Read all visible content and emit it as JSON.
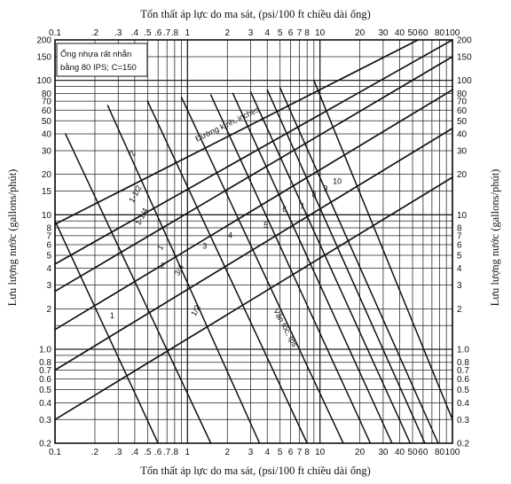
{
  "chart_data": {
    "type": "line",
    "x_scale": "log",
    "y_scale": "log",
    "xlim": [
      0.1,
      100
    ],
    "ylim": [
      0.2,
      200
    ],
    "grid": true,
    "title_top": "Tổn thất áp lực do ma sát, (psi/100 ft chiều dài ống)",
    "xlabel": "Tổn thất áp lực do ma sát, (psi/100 ft chiều dài ống)",
    "ylabel": "Lưu lượng nước (gallons/phút)",
    "ylabel_right": "Lưu lượng nước (gallons/phút)",
    "x_tick_labels": [
      {
        "v": 0.1,
        "t": "0.1"
      },
      {
        "v": 0.2,
        "t": ".2"
      },
      {
        "v": 0.3,
        "t": ".3"
      },
      {
        "v": 0.4,
        "t": ".4"
      },
      {
        "v": 0.5,
        "t": ".5"
      },
      {
        "v": 0.6,
        "t": ".6"
      },
      {
        "v": 0.7,
        "t": ".7"
      },
      {
        "v": 0.8,
        "t": ".8"
      },
      {
        "v": 1,
        "t": "1"
      },
      {
        "v": 2,
        "t": "2"
      },
      {
        "v": 3,
        "t": "3"
      },
      {
        "v": 4,
        "t": "4"
      },
      {
        "v": 5,
        "t": "5"
      },
      {
        "v": 6,
        "t": "6"
      },
      {
        "v": 7,
        "t": "7"
      },
      {
        "v": 8,
        "t": "8"
      },
      {
        "v": 10,
        "t": "10"
      },
      {
        "v": 20,
        "t": "20"
      },
      {
        "v": 30,
        "t": "30"
      },
      {
        "v": 40,
        "t": "40"
      },
      {
        "v": 50,
        "t": "50"
      },
      {
        "v": 60,
        "t": "60"
      },
      {
        "v": 80,
        "t": "80"
      },
      {
        "v": 100,
        "t": "100"
      }
    ],
    "y_tick_labels": [
      {
        "v": 200,
        "t": "200"
      },
      {
        "v": 150,
        "t": "150"
      },
      {
        "v": 100,
        "t": "100"
      },
      {
        "v": 80,
        "t": "80"
      },
      {
        "v": 70,
        "t": "70"
      },
      {
        "v": 60,
        "t": "60"
      },
      {
        "v": 50,
        "t": "50"
      },
      {
        "v": 40,
        "t": "40"
      },
      {
        "v": 30,
        "t": "30"
      },
      {
        "v": 20,
        "t": "20"
      },
      {
        "v": 15,
        "t": "15"
      },
      {
        "v": 10,
        "t": "10"
      },
      {
        "v": 8,
        "t": "8"
      },
      {
        "v": 7,
        "t": "7"
      },
      {
        "v": 6,
        "t": "6"
      },
      {
        "v": 5,
        "t": "5"
      },
      {
        "v": 4,
        "t": "4"
      },
      {
        "v": 3,
        "t": "3"
      },
      {
        "v": 2,
        "t": "2"
      },
      {
        "v": 1,
        "t": "1.0"
      },
      {
        "v": 0.8,
        "t": "0.8"
      },
      {
        "v": 0.7,
        "t": "0.7"
      },
      {
        "v": 0.6,
        "t": "0.6"
      },
      {
        "v": 0.5,
        "t": "0.5"
      },
      {
        "v": 0.4,
        "t": "0.4"
      },
      {
        "v": 0.3,
        "t": "0.3"
      },
      {
        "v": 0.2,
        "t": "0.2"
      }
    ],
    "y_tick_labels_right": [
      {
        "v": 200,
        "t": "200"
      },
      {
        "v": 150,
        "t": "150"
      },
      {
        "v": 100,
        "t": "100"
      },
      {
        "v": 80,
        "t": "80"
      },
      {
        "v": 70,
        "t": "70"
      },
      {
        "v": 60,
        "t": "60"
      },
      {
        "v": 50,
        "t": "50"
      },
      {
        "v": 40,
        "t": "40"
      },
      {
        "v": 30,
        "t": "30"
      },
      {
        "v": 20,
        "t": "20"
      },
      {
        "v": 10,
        "t": "10"
      },
      {
        "v": 8,
        "t": "8"
      },
      {
        "v": 7,
        "t": "7"
      },
      {
        "v": 6,
        "t": "6"
      },
      {
        "v": 5,
        "t": "5"
      },
      {
        "v": 4,
        "t": "4"
      },
      {
        "v": 3,
        "t": "3"
      },
      {
        "v": 2,
        "t": "2"
      },
      {
        "v": 1,
        "t": "1.0"
      },
      {
        "v": 0.8,
        "t": "0.8"
      },
      {
        "v": 0.7,
        "t": "0.7"
      },
      {
        "v": 0.6,
        "t": "0.6"
      },
      {
        "v": 0.5,
        "t": "0.5"
      },
      {
        "v": 0.4,
        "t": "0.4"
      },
      {
        "v": 0.3,
        "t": "0.3"
      },
      {
        "v": 0.2,
        "t": "0.2"
      }
    ],
    "note": [
      "Ống nhựa rất nhẵn",
      "bằng 80 IPS; C=150"
    ],
    "diameter_label": "Đường kính, inches",
    "velocity_label": "Vận tốc, fps",
    "diameter_lines": [
      {
        "label": "1/2",
        "points": [
          [
            0.1,
            0.3
          ],
          [
            100,
            19
          ]
        ],
        "label_at": [
          1.2,
          1.9
        ]
      },
      {
        "label": "3/4",
        "points": [
          [
            0.1,
            0.7
          ],
          [
            100,
            44
          ]
        ],
        "label_at": [
          0.9,
          3.8
        ]
      },
      {
        "label": "1",
        "points": [
          [
            0.1,
            1.4
          ],
          [
            100,
            85
          ]
        ],
        "label_at": [
          0.65,
          5.6
        ]
      },
      {
        "label": "1-1/4",
        "points": [
          [
            0.1,
            2.7
          ],
          [
            100,
            150
          ]
        ],
        "label_at": [
          0.47,
          9.5
        ]
      },
      {
        "label": "1-1/2",
        "points": [
          [
            0.1,
            4.3
          ],
          [
            100,
            200
          ]
        ],
        "label_at": [
          0.42,
          14
        ]
      },
      {
        "label": "2",
        "points": [
          [
            0.1,
            8.5
          ],
          [
            55,
            200
          ]
        ],
        "label_at": [
          0.4,
          28
        ]
      }
    ],
    "velocity_lines": [
      {
        "label": "1",
        "points": [
          [
            0.1,
            9
          ],
          [
            0.6,
            0.2
          ]
        ],
        "label_at": [
          0.27,
          1.7
        ]
      },
      {
        "label": "2",
        "points": [
          [
            0.12,
            40
          ],
          [
            1.5,
            0.2
          ]
        ],
        "label_at": [
          0.65,
          4.0
        ]
      },
      {
        "label": "3",
        "points": [
          [
            0.25,
            65
          ],
          [
            3.5,
            0.2
          ]
        ],
        "label_at": [
          1.35,
          5.6
        ]
      },
      {
        "label": "4",
        "points": [
          [
            0.5,
            70
          ],
          [
            8,
            0.2
          ]
        ],
        "label_at": [
          2.1,
          6.7
        ]
      },
      {
        "label": "5",
        "points": [
          [
            0.9,
            75
          ],
          [
            15,
            0.2
          ]
        ],
        "label_at": [
          3.9,
          8.0
        ]
      },
      {
        "label": "6",
        "points": [
          [
            1.5,
            78
          ],
          [
            24,
            0.2
          ]
        ],
        "label_at": [
          5.4,
          10.5
        ]
      },
      {
        "label": "7",
        "points": [
          [
            2.2,
            80
          ],
          [
            35,
            0.2
          ]
        ],
        "label_at": [
          7.3,
          11.0
        ]
      },
      {
        "label": "8",
        "points": [
          [
            3.0,
            82
          ],
          [
            48,
            0.2
          ]
        ],
        "label_at": [
          9.0,
          13.5
        ]
      },
      {
        "label": "9",
        "points": [
          [
            4.0,
            85
          ],
          [
            62,
            0.2
          ]
        ],
        "label_at": [
          11,
          15
        ]
      },
      {
        "label": "10",
        "points": [
          [
            5.0,
            88
          ],
          [
            78,
            0.2
          ]
        ],
        "label_at": [
          13.5,
          17
        ]
      },
      {
        "label": "",
        "points": [
          [
            9,
            100
          ],
          [
            100,
            0.3
          ]
        ],
        "label_at": null
      }
    ]
  }
}
